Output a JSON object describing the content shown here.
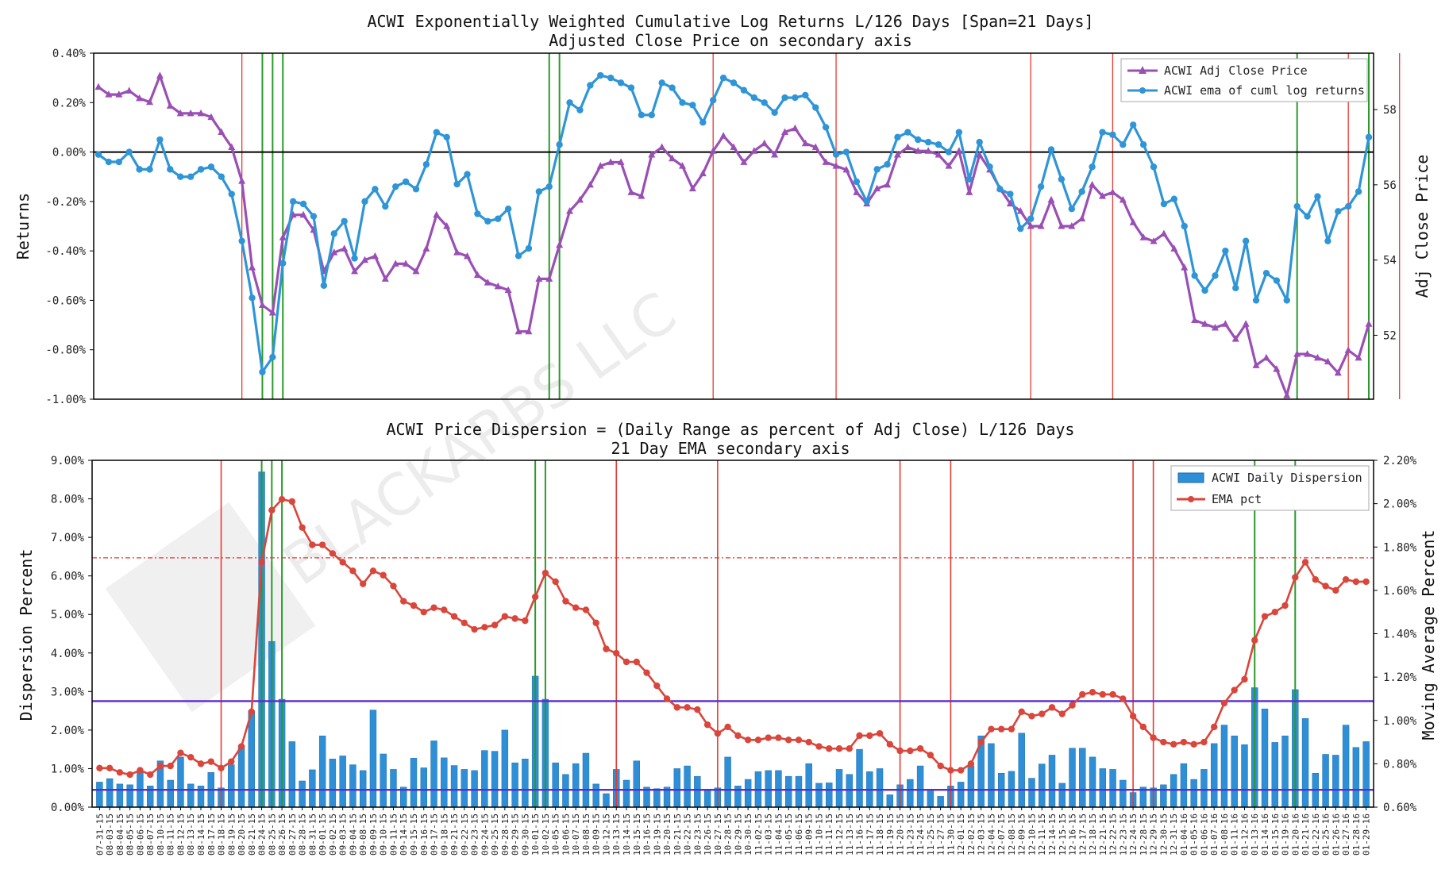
{
  "chart_data": [
    {
      "type": "line",
      "title": "ACWI Exponentially Weighted Cumulative Log Returns L/126 Days [Span=21 Days]",
      "subtitle": "Adjusted Close Price on secondary axis",
      "ylabel": "Returns",
      "y2label": "Adj Close Price",
      "ylim": [
        -1.0,
        0.4
      ],
      "y2lim": [
        50.3,
        59.5
      ],
      "yticks": [
        "0.40%",
        "0.20%",
        "0.00%",
        "-0.20%",
        "-0.40%",
        "-0.60%",
        "-0.80%",
        "-1.00%"
      ],
      "y2ticks": [
        "58",
        "56",
        "54",
        "52"
      ],
      "zero_line": true,
      "legend": [
        "ACWI Adj Close Price",
        "ACWI ema of cuml log returns"
      ],
      "legend_position": "top-right",
      "colors": {
        "price": "#9a4fb5",
        "ema": "#2f95d6",
        "red_vline": "#e8392f",
        "green_vline": "#2a9a2a"
      },
      "series": [
        {
          "name": "ACWI ema of cuml log returns",
          "axis": "left",
          "values": [
            -0.01,
            -0.04,
            -0.04,
            0.0,
            -0.07,
            -0.07,
            0.05,
            -0.07,
            -0.1,
            -0.1,
            -0.07,
            -0.06,
            -0.1,
            -0.17,
            -0.36,
            -0.59,
            -0.89,
            -0.83,
            -0.45,
            -0.2,
            -0.21,
            -0.26,
            -0.54,
            -0.33,
            -0.28,
            -0.43,
            -0.2,
            -0.15,
            -0.22,
            -0.14,
            -0.12,
            -0.15,
            -0.05,
            0.08,
            0.06,
            -0.13,
            -0.09,
            -0.25,
            -0.28,
            -0.27,
            -0.23,
            -0.42,
            -0.39,
            -0.16,
            -0.14,
            0.03,
            0.2,
            0.17,
            0.27,
            0.31,
            0.3,
            0.28,
            0.26,
            0.15,
            0.15,
            0.28,
            0.26,
            0.2,
            0.19,
            0.12,
            0.21,
            0.3,
            0.28,
            0.25,
            0.22,
            0.2,
            0.16,
            0.22,
            0.22,
            0.23,
            0.18,
            0.1,
            -0.01,
            -0.0,
            -0.12,
            -0.2,
            -0.07,
            -0.05,
            0.06,
            0.08,
            0.05,
            0.04,
            0.03,
            0.0,
            0.08,
            -0.11,
            0.04,
            -0.06,
            -0.15,
            -0.17,
            -0.31,
            -0.27,
            -0.14,
            0.01,
            -0.11,
            -0.23,
            -0.16,
            -0.06,
            0.08,
            0.07,
            0.03,
            0.11,
            0.03,
            -0.06,
            -0.21,
            -0.19,
            -0.3,
            -0.5,
            -0.56,
            -0.5,
            -0.4,
            -0.55,
            -0.36,
            -0.6,
            -0.49,
            -0.52,
            -0.6,
            -0.22,
            -0.26,
            -0.18,
            -0.36,
            -0.24,
            -0.22,
            -0.16,
            0.06
          ]
        },
        {
          "name": "ACWI Adj Close Price",
          "axis": "right",
          "values": [
            58.6,
            58.4,
            58.4,
            58.5,
            58.3,
            58.2,
            58.9,
            58.1,
            57.9,
            57.9,
            57.9,
            57.8,
            57.4,
            57.0,
            56.1,
            53.8,
            52.8,
            52.6,
            54.6,
            55.2,
            55.2,
            54.8,
            53.7,
            54.2,
            54.3,
            53.7,
            54.0,
            54.1,
            53.5,
            53.9,
            53.9,
            53.7,
            54.3,
            55.2,
            54.9,
            54.2,
            54.1,
            53.6,
            53.4,
            53.3,
            53.2,
            52.1,
            52.1,
            53.5,
            53.5,
            54.4,
            55.3,
            55.6,
            56.0,
            56.5,
            56.6,
            56.6,
            55.8,
            55.7,
            56.8,
            57.0,
            56.7,
            56.5,
            55.9,
            56.3,
            56.9,
            57.3,
            57.0,
            56.6,
            56.9,
            57.1,
            56.8,
            57.4,
            57.5,
            57.1,
            57.0,
            56.6,
            56.5,
            56.4,
            55.8,
            55.5,
            55.9,
            56.0,
            56.8,
            57.0,
            56.9,
            56.9,
            56.8,
            56.5,
            56.9,
            55.8,
            56.8,
            56.4,
            55.9,
            55.5,
            55.3,
            54.9,
            54.9,
            55.6,
            54.9,
            54.9,
            55.1,
            56.0,
            55.7,
            55.8,
            55.6,
            55.0,
            54.6,
            54.5,
            54.7,
            54.3,
            53.8,
            52.4,
            52.3,
            52.2,
            52.3,
            51.9,
            52.3,
            51.2,
            51.4,
            51.1,
            50.4,
            51.5,
            51.5,
            51.4,
            51.3,
            51.0,
            51.6,
            51.4,
            52.3
          ]
        }
      ],
      "red_vline_indices": [
        14,
        60,
        72,
        91,
        99,
        122,
        127
      ],
      "green_vline_indices": [
        16,
        17,
        18,
        44,
        45,
        117,
        124
      ]
    },
    {
      "type": "bar",
      "title": "ACWI Price Dispersion = (Daily Range as percent of Adj Close) L/126 Days",
      "subtitle": "21 Day EMA secondary axis",
      "ylabel": "Dispersion Percent",
      "y2label": "Moving Average Percent",
      "ylim": [
        0,
        9.0
      ],
      "y2lim": [
        0.6,
        2.2
      ],
      "yticks": [
        "9.00%",
        "8.00%",
        "7.00%",
        "6.00%",
        "5.00%",
        "4.00%",
        "3.00%",
        "2.00%",
        "1.00%",
        "0.00%"
      ],
      "y2ticks": [
        "2.20%",
        "2.00%",
        "1.80%",
        "1.60%",
        "1.40%",
        "1.20%",
        "1.00%",
        "0.80%",
        "0.60%"
      ],
      "legend": [
        "ACWI Daily Dispersion",
        "EMA pct"
      ],
      "legend_position": "top-right",
      "colors": {
        "bars": "#2f8fd6",
        "ema": "#d9463b",
        "hline": "#5a2bcf",
        "dashline": "#e8392f"
      },
      "hlines_left": [
        2.75,
        0.45
      ],
      "dashline_right": 1.75,
      "categories": [
        "07-31-15",
        "08-03-15",
        "08-04-15",
        "08-05-15",
        "08-06-15",
        "08-07-15",
        "08-10-15",
        "08-11-15",
        "08-12-15",
        "08-13-15",
        "08-14-15",
        "08-17-15",
        "08-18-15",
        "08-19-15",
        "08-20-15",
        "08-21-15",
        "08-24-15",
        "08-25-15",
        "08-26-15",
        "08-27-15",
        "08-28-15",
        "08-31-15",
        "09-01-15",
        "09-02-15",
        "09-03-15",
        "09-04-15",
        "09-08-15",
        "09-09-15",
        "09-10-15",
        "09-11-15",
        "09-14-15",
        "09-15-15",
        "09-16-15",
        "09-17-15",
        "09-18-15",
        "09-21-15",
        "09-22-15",
        "09-23-15",
        "09-24-15",
        "09-25-15",
        "09-28-15",
        "09-29-15",
        "09-30-15",
        "10-01-15",
        "10-02-15",
        "10-05-15",
        "10-06-15",
        "10-07-15",
        "10-08-15",
        "10-09-15",
        "10-12-15",
        "10-13-15",
        "10-14-15",
        "10-15-15",
        "10-16-15",
        "10-19-15",
        "10-20-15",
        "10-21-15",
        "10-22-15",
        "10-23-15",
        "10-26-15",
        "10-27-15",
        "10-28-15",
        "10-29-15",
        "10-30-15",
        "11-02-15",
        "11-03-15",
        "11-04-15",
        "11-05-15",
        "11-06-15",
        "11-09-15",
        "11-10-15",
        "11-11-15",
        "11-12-15",
        "11-13-15",
        "11-16-15",
        "11-17-15",
        "11-18-15",
        "11-19-15",
        "11-20-15",
        "11-23-15",
        "11-24-15",
        "11-25-15",
        "11-27-15",
        "11-30-15",
        "12-01-15",
        "12-02-15",
        "12-03-15",
        "12-04-15",
        "12-07-15",
        "12-08-15",
        "12-09-15",
        "12-10-15",
        "12-11-15",
        "12-14-15",
        "12-15-15",
        "12-16-15",
        "12-17-15",
        "12-18-15",
        "12-21-15",
        "12-22-15",
        "12-23-15",
        "12-24-15",
        "12-28-15",
        "12-29-15",
        "12-30-15",
        "12-31-15",
        "01-04-16",
        "01-05-16",
        "01-06-16",
        "01-07-16",
        "01-08-16",
        "01-11-16",
        "01-12-16",
        "01-13-16",
        "01-14-16",
        "01-15-16",
        "01-19-16",
        "01-20-16",
        "01-21-16",
        "01-22-16",
        "01-25-16",
        "01-26-16",
        "01-27-16",
        "01-28-16",
        "01-29-16"
      ],
      "series": [
        {
          "name": "ACWI Daily Dispersion",
          "axis": "left",
          "values": [
            0.65,
            0.74,
            0.6,
            0.58,
            0.92,
            0.55,
            1.2,
            0.7,
            1.3,
            0.6,
            0.55,
            0.9,
            0.5,
            1.1,
            1.6,
            2.5,
            8.7,
            4.3,
            2.8,
            1.7,
            0.68,
            0.97,
            1.85,
            1.25,
            1.33,
            1.1,
            0.95,
            2.52,
            1.38,
            0.98,
            0.52,
            1.27,
            1.02,
            1.72,
            1.28,
            1.08,
            0.98,
            0.95,
            1.47,
            1.45,
            2.0,
            1.15,
            1.25,
            3.4,
            2.8,
            1.15,
            0.85,
            1.13,
            1.4,
            0.6,
            0.35,
            0.98,
            0.7,
            1.2,
            0.52,
            0.48,
            0.52,
            1.0,
            1.07,
            0.8,
            0.45,
            0.5,
            1.3,
            0.55,
            0.72,
            0.92,
            0.95,
            0.95,
            0.8,
            0.8,
            1.13,
            0.62,
            0.63,
            0.98,
            0.85,
            1.5,
            0.92,
            1.0,
            0.32,
            0.58,
            0.72,
            1.07,
            0.42,
            0.28,
            0.55,
            0.65,
            1.07,
            1.85,
            1.65,
            0.88,
            0.93,
            1.92,
            0.75,
            1.12,
            1.35,
            0.62,
            1.53,
            1.53,
            1.3,
            1.0,
            0.98,
            0.7,
            0.38,
            0.52,
            0.5,
            0.58,
            0.85,
            1.13,
            0.72,
            0.98,
            1.65,
            2.13,
            1.85,
            1.62,
            3.1,
            2.55,
            1.68,
            1.85,
            3.05,
            2.3,
            0.88,
            1.37,
            1.35,
            2.13,
            1.55,
            1.7
          ]
        },
        {
          "name": "EMA pct",
          "axis": "right",
          "values": [
            0.78,
            0.78,
            0.76,
            0.75,
            0.77,
            0.75,
            0.79,
            0.79,
            0.85,
            0.83,
            0.8,
            0.81,
            0.78,
            0.81,
            0.88,
            1.04,
            1.73,
            1.97,
            2.02,
            2.01,
            1.89,
            1.81,
            1.81,
            1.77,
            1.73,
            1.69,
            1.63,
            1.69,
            1.67,
            1.62,
            1.55,
            1.53,
            1.5,
            1.52,
            1.51,
            1.48,
            1.45,
            1.42,
            1.43,
            1.44,
            1.48,
            1.47,
            1.46,
            1.57,
            1.68,
            1.64,
            1.55,
            1.52,
            1.51,
            1.45,
            1.33,
            1.31,
            1.27,
            1.27,
            1.22,
            1.16,
            1.1,
            1.06,
            1.06,
            1.05,
            0.98,
            0.94,
            0.97,
            0.93,
            0.91,
            0.91,
            0.92,
            0.92,
            0.91,
            0.91,
            0.9,
            0.88,
            0.87,
            0.87,
            0.87,
            0.93,
            0.93,
            0.94,
            0.89,
            0.86,
            0.86,
            0.87,
            0.84,
            0.79,
            0.77,
            0.77,
            0.8,
            0.9,
            0.96,
            0.96,
            0.96,
            1.04,
            1.02,
            1.03,
            1.06,
            1.03,
            1.07,
            1.12,
            1.13,
            1.12,
            1.12,
            1.1,
            1.02,
            0.97,
            0.92,
            0.9,
            0.89,
            0.9,
            0.89,
            0.9,
            0.97,
            1.08,
            1.14,
            1.19,
            1.37,
            1.48,
            1.5,
            1.53,
            1.66,
            1.73,
            1.65,
            1.62,
            1.6,
            1.65,
            1.64,
            1.64
          ]
        }
      ],
      "red_vline_indices": [
        12,
        51,
        61,
        79,
        84,
        102,
        104
      ],
      "green_vline_indices": [
        16,
        17,
        18,
        43,
        44,
        114,
        118
      ]
    }
  ],
  "watermark": {
    "text": "BLACKARBS LLC"
  }
}
